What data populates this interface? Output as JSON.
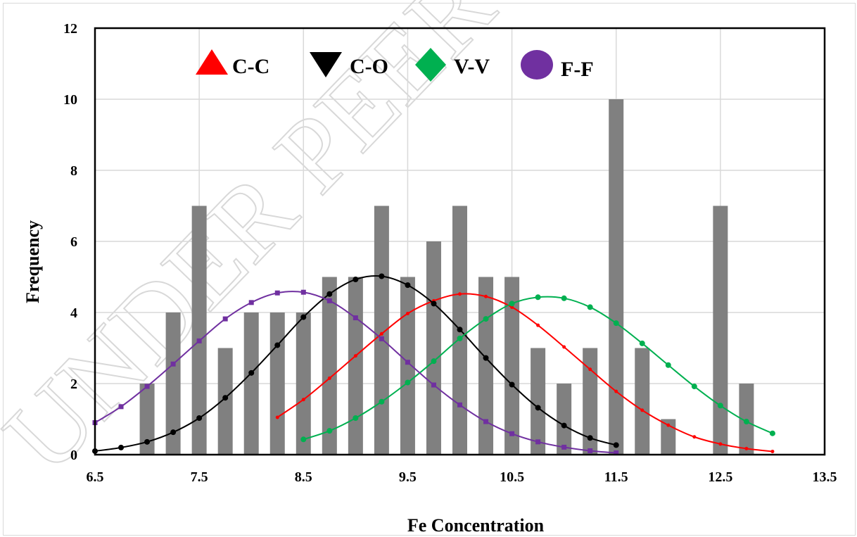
{
  "chart_data": {
    "type": "bar",
    "xlabel": "Fe Concentration",
    "ylabel": "Frequency",
    "xlim": [
      6.5,
      13.5
    ],
    "ylim": [
      0,
      12
    ],
    "x_ticks": [
      "6.5",
      "7.5",
      "8.5",
      "9.5",
      "10.5",
      "11.5",
      "12.5",
      "13.5"
    ],
    "y_ticks": [
      "0",
      "2",
      "4",
      "6",
      "8",
      "10",
      "12"
    ],
    "grid": true,
    "legend_position": "top",
    "bar_color": "#808080",
    "bars": {
      "x": [
        7.0,
        7.25,
        7.5,
        7.75,
        8.0,
        8.25,
        8.5,
        8.75,
        9.0,
        9.25,
        9.5,
        9.75,
        10.0,
        10.25,
        10.5,
        10.75,
        11.0,
        11.25,
        11.5,
        11.75,
        12.0,
        12.5,
        12.75
      ],
      "values": [
        2,
        4,
        7,
        3,
        4,
        4,
        4,
        5,
        5,
        7,
        5,
        6,
        7,
        5,
        5,
        3,
        2,
        3,
        10,
        3,
        1,
        7,
        2
      ]
    },
    "series": [
      {
        "name": "C-C",
        "color": "#ff0000",
        "marker": "triangle",
        "x": [
          8.25,
          8.5,
          8.75,
          9.0,
          9.25,
          9.5,
          9.75,
          10.0,
          10.25,
          10.5,
          10.75,
          11.0,
          11.25,
          11.5,
          11.75,
          12.0,
          12.25,
          12.5,
          12.75,
          13.0
        ],
        "values": [
          1.05,
          1.55,
          2.15,
          2.78,
          3.4,
          3.97,
          4.33,
          4.52,
          4.45,
          4.15,
          3.64,
          3.03,
          2.4,
          1.78,
          1.25,
          0.83,
          0.5,
          0.3,
          0.17,
          0.09
        ]
      },
      {
        "name": "C-O",
        "color": "#000000",
        "marker": "inverted-triangle",
        "x": [
          6.5,
          6.75,
          7.0,
          7.25,
          7.5,
          7.75,
          8.0,
          8.25,
          8.5,
          8.75,
          9.0,
          9.25,
          9.5,
          9.75,
          10.0,
          10.25,
          10.5,
          10.75,
          11.0,
          11.25,
          11.5
        ],
        "values": [
          0.1,
          0.2,
          0.36,
          0.63,
          1.03,
          1.6,
          2.3,
          3.08,
          3.87,
          4.52,
          4.93,
          5.02,
          4.77,
          4.25,
          3.52,
          2.72,
          1.97,
          1.32,
          0.82,
          0.47,
          0.27
        ]
      },
      {
        "name": "V-V",
        "color": "#00b050",
        "marker": "diamond",
        "x": [
          8.5,
          8.75,
          9.0,
          9.25,
          9.5,
          9.75,
          10.0,
          10.25,
          10.5,
          10.75,
          11.0,
          11.25,
          11.5,
          11.75,
          12.0,
          12.25,
          12.5,
          12.75,
          13.0
        ],
        "values": [
          0.43,
          0.67,
          1.03,
          1.49,
          2.03,
          2.63,
          3.27,
          3.82,
          4.25,
          4.43,
          4.4,
          4.15,
          3.7,
          3.13,
          2.52,
          1.92,
          1.38,
          0.93,
          0.6
        ]
      },
      {
        "name": "F-F",
        "color": "#7030a0",
        "marker": "circle",
        "x": [
          6.5,
          6.75,
          7.0,
          7.25,
          7.5,
          7.75,
          8.0,
          8.25,
          8.5,
          8.75,
          9.0,
          9.25,
          9.5,
          9.75,
          10.0,
          10.25,
          10.5,
          10.75,
          11.0,
          11.25,
          11.5
        ],
        "values": [
          0.9,
          1.35,
          1.92,
          2.55,
          3.2,
          3.82,
          4.28,
          4.55,
          4.57,
          4.33,
          3.85,
          3.26,
          2.6,
          1.96,
          1.4,
          0.93,
          0.59,
          0.36,
          0.21,
          0.11,
          0.05
        ]
      }
    ]
  },
  "watermark": "UNDER PEER R"
}
